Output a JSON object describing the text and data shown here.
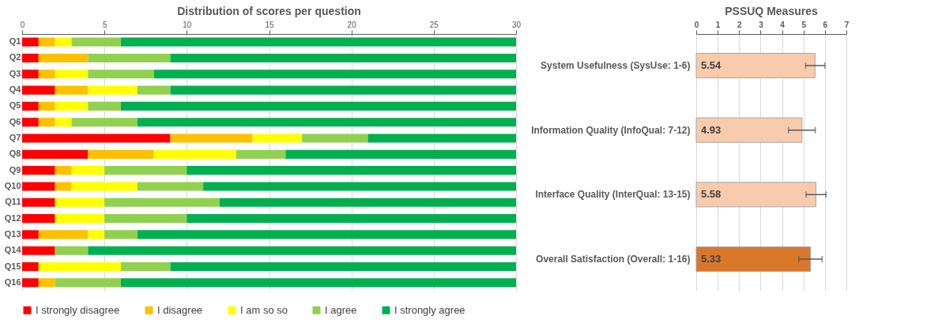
{
  "chart_data": [
    {
      "type": "bar",
      "title": "Distribution of scores per question",
      "orientation": "horizontal",
      "stacked": true,
      "categories": [
        "Q1",
        "Q2",
        "Q3",
        "Q4",
        "Q5",
        "Q6",
        "Q7",
        "Q8",
        "Q9",
        "Q10",
        "Q11",
        "Q12",
        "Q13",
        "Q14",
        "Q15",
        "Q16"
      ],
      "series": [
        {
          "name": "I strongly disagree",
          "color": "#ff0000",
          "values": [
            1,
            1,
            1,
            2,
            1,
            1,
            9,
            4,
            2,
            2,
            2,
            2,
            1,
            2,
            1,
            1
          ]
        },
        {
          "name": "I disagree",
          "color": "#ffc000",
          "values": [
            1,
            3,
            1,
            2,
            1,
            1,
            5,
            4,
            1,
            1,
            0,
            0,
            3,
            0,
            0,
            1
          ]
        },
        {
          "name": "I am so so",
          "color": "#ffff00",
          "values": [
            1,
            0,
            2,
            3,
            2,
            1,
            3,
            5,
            2,
            4,
            3,
            3,
            1,
            0,
            5,
            0
          ]
        },
        {
          "name": "I agree",
          "color": "#92d050",
          "values": [
            3,
            5,
            4,
            2,
            2,
            4,
            4,
            3,
            5,
            4,
            7,
            5,
            2,
            2,
            3,
            4
          ]
        },
        {
          "name": "I strongly agree",
          "color": "#00b050",
          "values": [
            24,
            21,
            22,
            21,
            24,
            23,
            9,
            14,
            20,
            19,
            18,
            20,
            23,
            26,
            21,
            24
          ]
        }
      ],
      "xlim": [
        0,
        30
      ],
      "xticks": [
        0,
        5,
        10,
        15,
        20,
        25,
        30
      ],
      "grid": "x",
      "legend": "bottom"
    },
    {
      "type": "bar",
      "title": "PSSUQ Measures",
      "orientation": "horizontal",
      "categories": [
        "System Usefulness (SysUse: 1-6)",
        "Information Quality (InfoQual: 7-12)",
        "Interface Quality (InterQual: 13-15)",
        "Overall Satisfaction (Overall: 1-16)"
      ],
      "values": [
        5.54,
        4.93,
        5.58,
        5.33
      ],
      "colors": [
        "#f8cbad",
        "#f8cbad",
        "#f8cbad",
        "#d9772b"
      ],
      "errors": [
        [
          5.1,
          6.0
        ],
        [
          4.3,
          5.55
        ],
        [
          5.12,
          6.05
        ],
        [
          4.78,
          5.87
        ]
      ],
      "data_labels": true,
      "xlim": [
        0,
        7
      ],
      "xticks": [
        0,
        1,
        2,
        3,
        4,
        5,
        6,
        7
      ],
      "grid": "x",
      "legend": false
    }
  ]
}
